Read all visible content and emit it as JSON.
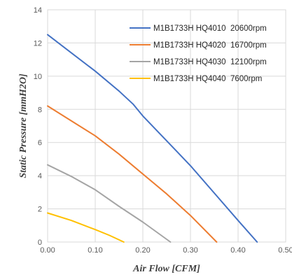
{
  "chart_data": {
    "type": "line",
    "xlabel": "Air Flow [CFM]",
    "ylabel": "Static Pressure [mmH2O]",
    "xlim": [
      0,
      0.5
    ],
    "ylim": [
      0,
      14
    ],
    "x_ticks": [
      "0.00",
      "0.10",
      "0.20",
      "0.30",
      "0.40",
      "0.50"
    ],
    "y_ticks": [
      "0",
      "2",
      "4",
      "6",
      "8",
      "10",
      "12",
      "14"
    ],
    "grid": true,
    "legend_position": "top-right",
    "series": [
      {
        "name": "M1B1733H HQ4010  20600rpm",
        "color": "#4472c4",
        "points": [
          [
            0.0,
            12.5
          ],
          [
            0.05,
            11.4
          ],
          [
            0.1,
            10.3
          ],
          [
            0.15,
            9.1
          ],
          [
            0.18,
            8.3
          ],
          [
            0.2,
            7.6
          ],
          [
            0.25,
            6.1
          ],
          [
            0.3,
            4.6
          ],
          [
            0.35,
            2.95
          ],
          [
            0.4,
            1.3
          ],
          [
            0.44,
            0.0
          ]
        ]
      },
      {
        "name": "M1B1733H HQ4020  16700rpm",
        "color": "#ed7d31",
        "points": [
          [
            0.0,
            8.2
          ],
          [
            0.05,
            7.3
          ],
          [
            0.1,
            6.4
          ],
          [
            0.15,
            5.3
          ],
          [
            0.2,
            4.1
          ],
          [
            0.25,
            2.9
          ],
          [
            0.3,
            1.6
          ],
          [
            0.355,
            0.0
          ]
        ]
      },
      {
        "name": "M1B1733H HQ4030  12100rpm",
        "color": "#a5a5a5",
        "points": [
          [
            0.0,
            4.65
          ],
          [
            0.05,
            3.95
          ],
          [
            0.1,
            3.15
          ],
          [
            0.15,
            2.15
          ],
          [
            0.2,
            1.2
          ],
          [
            0.258,
            0.0
          ]
        ]
      },
      {
        "name": "M1B1733H HQ4040  7600rpm",
        "color": "#ffc000",
        "points": [
          [
            0.0,
            1.75
          ],
          [
            0.05,
            1.3
          ],
          [
            0.1,
            0.75
          ],
          [
            0.13,
            0.4
          ],
          [
            0.16,
            0.0
          ]
        ]
      }
    ]
  }
}
